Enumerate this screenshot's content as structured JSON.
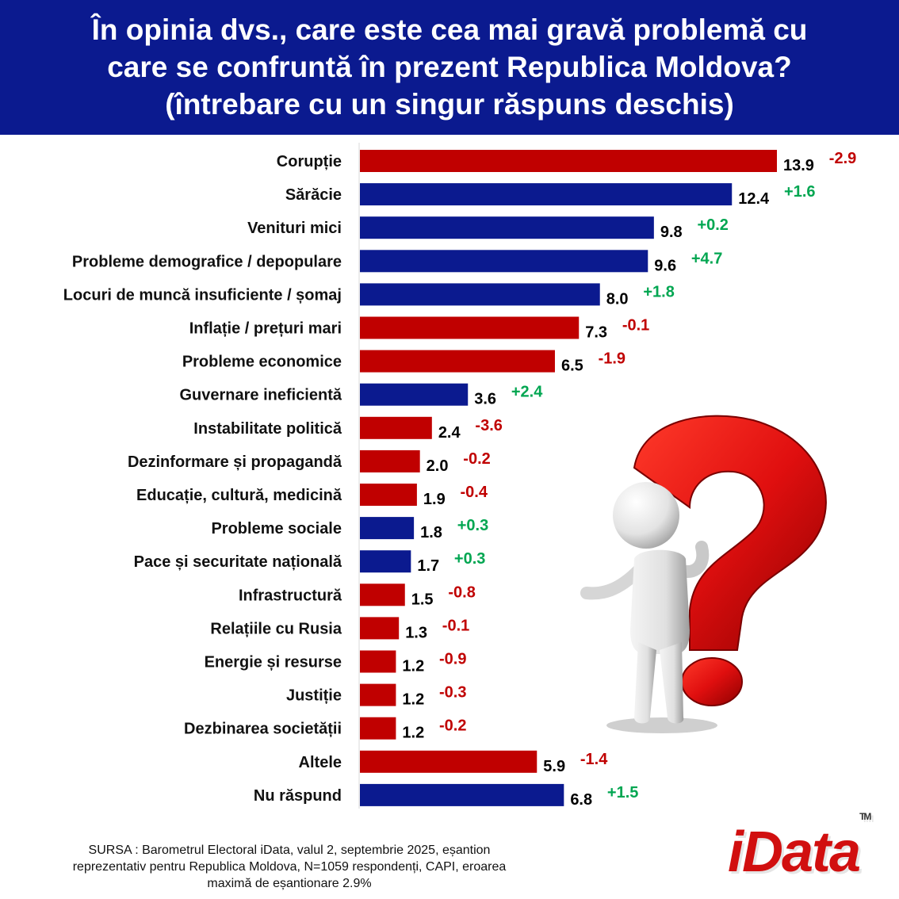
{
  "header": {
    "title_lines": [
      "În opinia dvs., care este cea mai gravă problemă cu",
      "care se confruntă în prezent Republica Moldova?",
      "(întrebare cu un singur răspuns deschis)"
    ]
  },
  "chart_data": {
    "type": "bar",
    "orientation": "horizontal",
    "title": "În opinia dvs., care este cea mai gravă problemă cu care se confruntă în prezent Republica Moldova? (întrebare cu un singur răspuns deschis)",
    "xlim": [
      0,
      14
    ],
    "categories": [
      "Corupție",
      "Sărăcie",
      "Venituri mici",
      "Probleme demografice / depopulare",
      "Locuri de muncă insuficiente / șomaj",
      "Inflație / prețuri mari",
      "Probleme economice",
      "Guvernare ineficientă",
      "Instabilitate politică",
      "Dezinformare și propagandă",
      "Educație, cultură, medicină",
      "Probleme sociale",
      "Pace și securitate națională",
      "Infrastructură",
      "Relațiile cu Rusia",
      "Energie și resurse ",
      "Justiție",
      "Dezbinarea societății",
      "Altele",
      "Nu răspund"
    ],
    "values": [
      13.9,
      12.4,
      9.8,
      9.6,
      8.0,
      7.3,
      6.5,
      3.6,
      2.4,
      2.0,
      1.9,
      1.8,
      1.7,
      1.5,
      1.3,
      1.2,
      1.2,
      1.2,
      5.9,
      6.8
    ],
    "value_labels": [
      "13.9",
      "12.4",
      "9.8",
      "9.6",
      "8.0",
      "7.3",
      "6.5",
      "3.6",
      "2.4",
      "2.0",
      "1.9",
      "1.8",
      "1.7",
      "1.5",
      "1.3",
      "1.2",
      "1.2",
      "1.2",
      "5.9",
      "6.8"
    ],
    "changes": [
      "-2.9",
      "+1.6",
      "+0.2",
      "+4.7",
      "+1.8",
      "-0.1",
      "-1.9",
      "+2.4",
      "-3.6",
      "-0.2",
      "-0.4",
      "+0.3",
      "+0.3",
      "-0.8",
      "-0.1",
      "-0.9",
      "-0.3",
      "-0.2",
      "-1.4",
      "+1.5"
    ],
    "colors": {
      "increase_bar": "#0b1a8f",
      "decrease_bar": "#c00000",
      "increase_text": "#00a651",
      "decrease_text": "#c00000",
      "value_text": "#000000",
      "axis": "#d9d9d9"
    }
  },
  "footer": {
    "source_lines": [
      "SURSA : Barometrul Electoral iData, valul 2, septembrie 2025, eșantion",
      "reprezentativ pentru Republica Moldova, N=1059 respondenți, CAPI, eroarea",
      "maximă de eșantionare 2.9%"
    ]
  },
  "logo": {
    "text": "iData",
    "tm": "TM"
  }
}
